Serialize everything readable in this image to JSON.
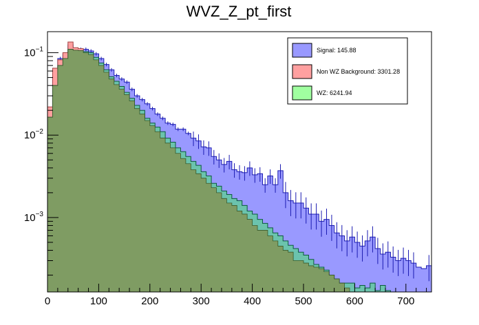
{
  "chart_data": {
    "type": "histogram",
    "title": "WVZ_Z_pt_first",
    "xlabel": "",
    "ylabel": "",
    "xlim": [
      0,
      750
    ],
    "ylim": [
      0.000125,
      0.18
    ],
    "yscale": "log",
    "bin_width": 10,
    "x_ticks": [
      0,
      100,
      200,
      300,
      400,
      500,
      600,
      700
    ],
    "y_ticks": [
      {
        "base": "10",
        "exp": "−1",
        "value": 0.1
      },
      {
        "base": "10",
        "exp": "−2",
        "value": 0.01
      },
      {
        "base": "10",
        "exp": "−3",
        "value": 0.001
      }
    ],
    "legend": [
      {
        "label": "Signal: 145.88",
        "color": "#9999ff"
      },
      {
        "label": "Non WZ Background: 3301.28",
        "color": "#ffa0a0"
      },
      {
        "label": "WZ: 6241.94",
        "color": "#a0ffa0"
      }
    ],
    "series": [
      {
        "name": "Signal",
        "color": "#9999ff",
        "values": [
          0.0165,
          0.05,
          0.085,
          0.095,
          0.125,
          0.105,
          0.11,
          0.11,
          0.105,
          0.097,
          0.085,
          0.072,
          0.062,
          0.053,
          0.048,
          0.044,
          0.036,
          0.03,
          0.027,
          0.024,
          0.021,
          0.018,
          0.016,
          0.014,
          0.0135,
          0.0118,
          0.0118,
          0.0105,
          0.0092,
          0.0085,
          0.0072,
          0.007,
          0.0055,
          0.005,
          0.0044,
          0.0048,
          0.0038,
          0.0036,
          0.0035,
          0.004,
          0.0033,
          0.0034,
          0.0025,
          0.0032,
          0.0025,
          0.0037,
          0.002,
          0.0016,
          0.0015,
          0.0015,
          0.0013,
          0.0011,
          0.0011,
          0.0009,
          0.00095,
          0.0008,
          0.00065,
          0.0006,
          0.00052,
          0.00058,
          0.0005,
          0.00045,
          0.00052,
          0.00058,
          0.00042,
          0.00036,
          0.00038,
          0.00033,
          0.0003,
          0.00032,
          0.0003,
          0.00028,
          0.00025,
          0.00024,
          0.00026
        ]
      },
      {
        "name": "Non WZ Background",
        "color": "#ffa0a0",
        "values": [
          0.022,
          0.065,
          0.082,
          0.1,
          0.135,
          0.115,
          0.112,
          0.1,
          0.095,
          0.082,
          0.07,
          0.058,
          0.048,
          0.041,
          0.036,
          0.031,
          0.026,
          0.021,
          0.018,
          0.015,
          0.013,
          0.011,
          0.0092,
          0.008,
          0.007,
          0.006,
          0.0052,
          0.0045,
          0.0038,
          0.0034,
          0.003,
          0.0026,
          0.0023,
          0.002,
          0.0017,
          0.0015,
          0.0014,
          0.0012,
          0.0011,
          0.00095,
          0.0008,
          0.0007,
          0.0007,
          0.0006,
          0.00052,
          0.00045,
          0.0004,
          0.00038,
          0.0003,
          0.0003,
          0.00028,
          0.00026,
          0.00025,
          0.00024,
          0.00022,
          0.0002,
          0.00018,
          0.00016,
          0.00014,
          0.00012,
          0.0001,
          0.0001,
          0.0001,
          0.0001,
          0.0001,
          0.0001,
          0.0001,
          0.0001,
          0.0001,
          0.0001,
          0.0001,
          0.0001,
          0.0001,
          0.0001,
          0.0001
        ]
      },
      {
        "name": "WZ",
        "color": "#a0ffa0",
        "values": [
          0.0165,
          0.04,
          0.07,
          0.085,
          0.11,
          0.107,
          0.106,
          0.103,
          0.1,
          0.088,
          0.075,
          0.062,
          0.051,
          0.045,
          0.039,
          0.033,
          0.028,
          0.023,
          0.02,
          0.016,
          0.014,
          0.0125,
          0.011,
          0.0092,
          0.0082,
          0.007,
          0.0063,
          0.0055,
          0.0048,
          0.0043,
          0.0036,
          0.0032,
          0.0026,
          0.0024,
          0.0021,
          0.0019,
          0.0017,
          0.0016,
          0.0014,
          0.0012,
          0.0011,
          0.00095,
          0.00085,
          0.00075,
          0.00065,
          0.0006,
          0.00052,
          0.00046,
          0.00042,
          0.00038,
          0.00035,
          0.00031,
          0.00027,
          0.00025,
          0.00023,
          0.0002,
          0.00018,
          0.00016,
          0.00016,
          0.00016,
          0.00014,
          0.00015,
          0.00014,
          0.00016,
          0.00013,
          0.00015,
          0.00013,
          0.00012,
          0.00011,
          0.00012,
          0.0001,
          0.0001,
          0.0001,
          0.0001,
          0.0001
        ]
      }
    ]
  }
}
